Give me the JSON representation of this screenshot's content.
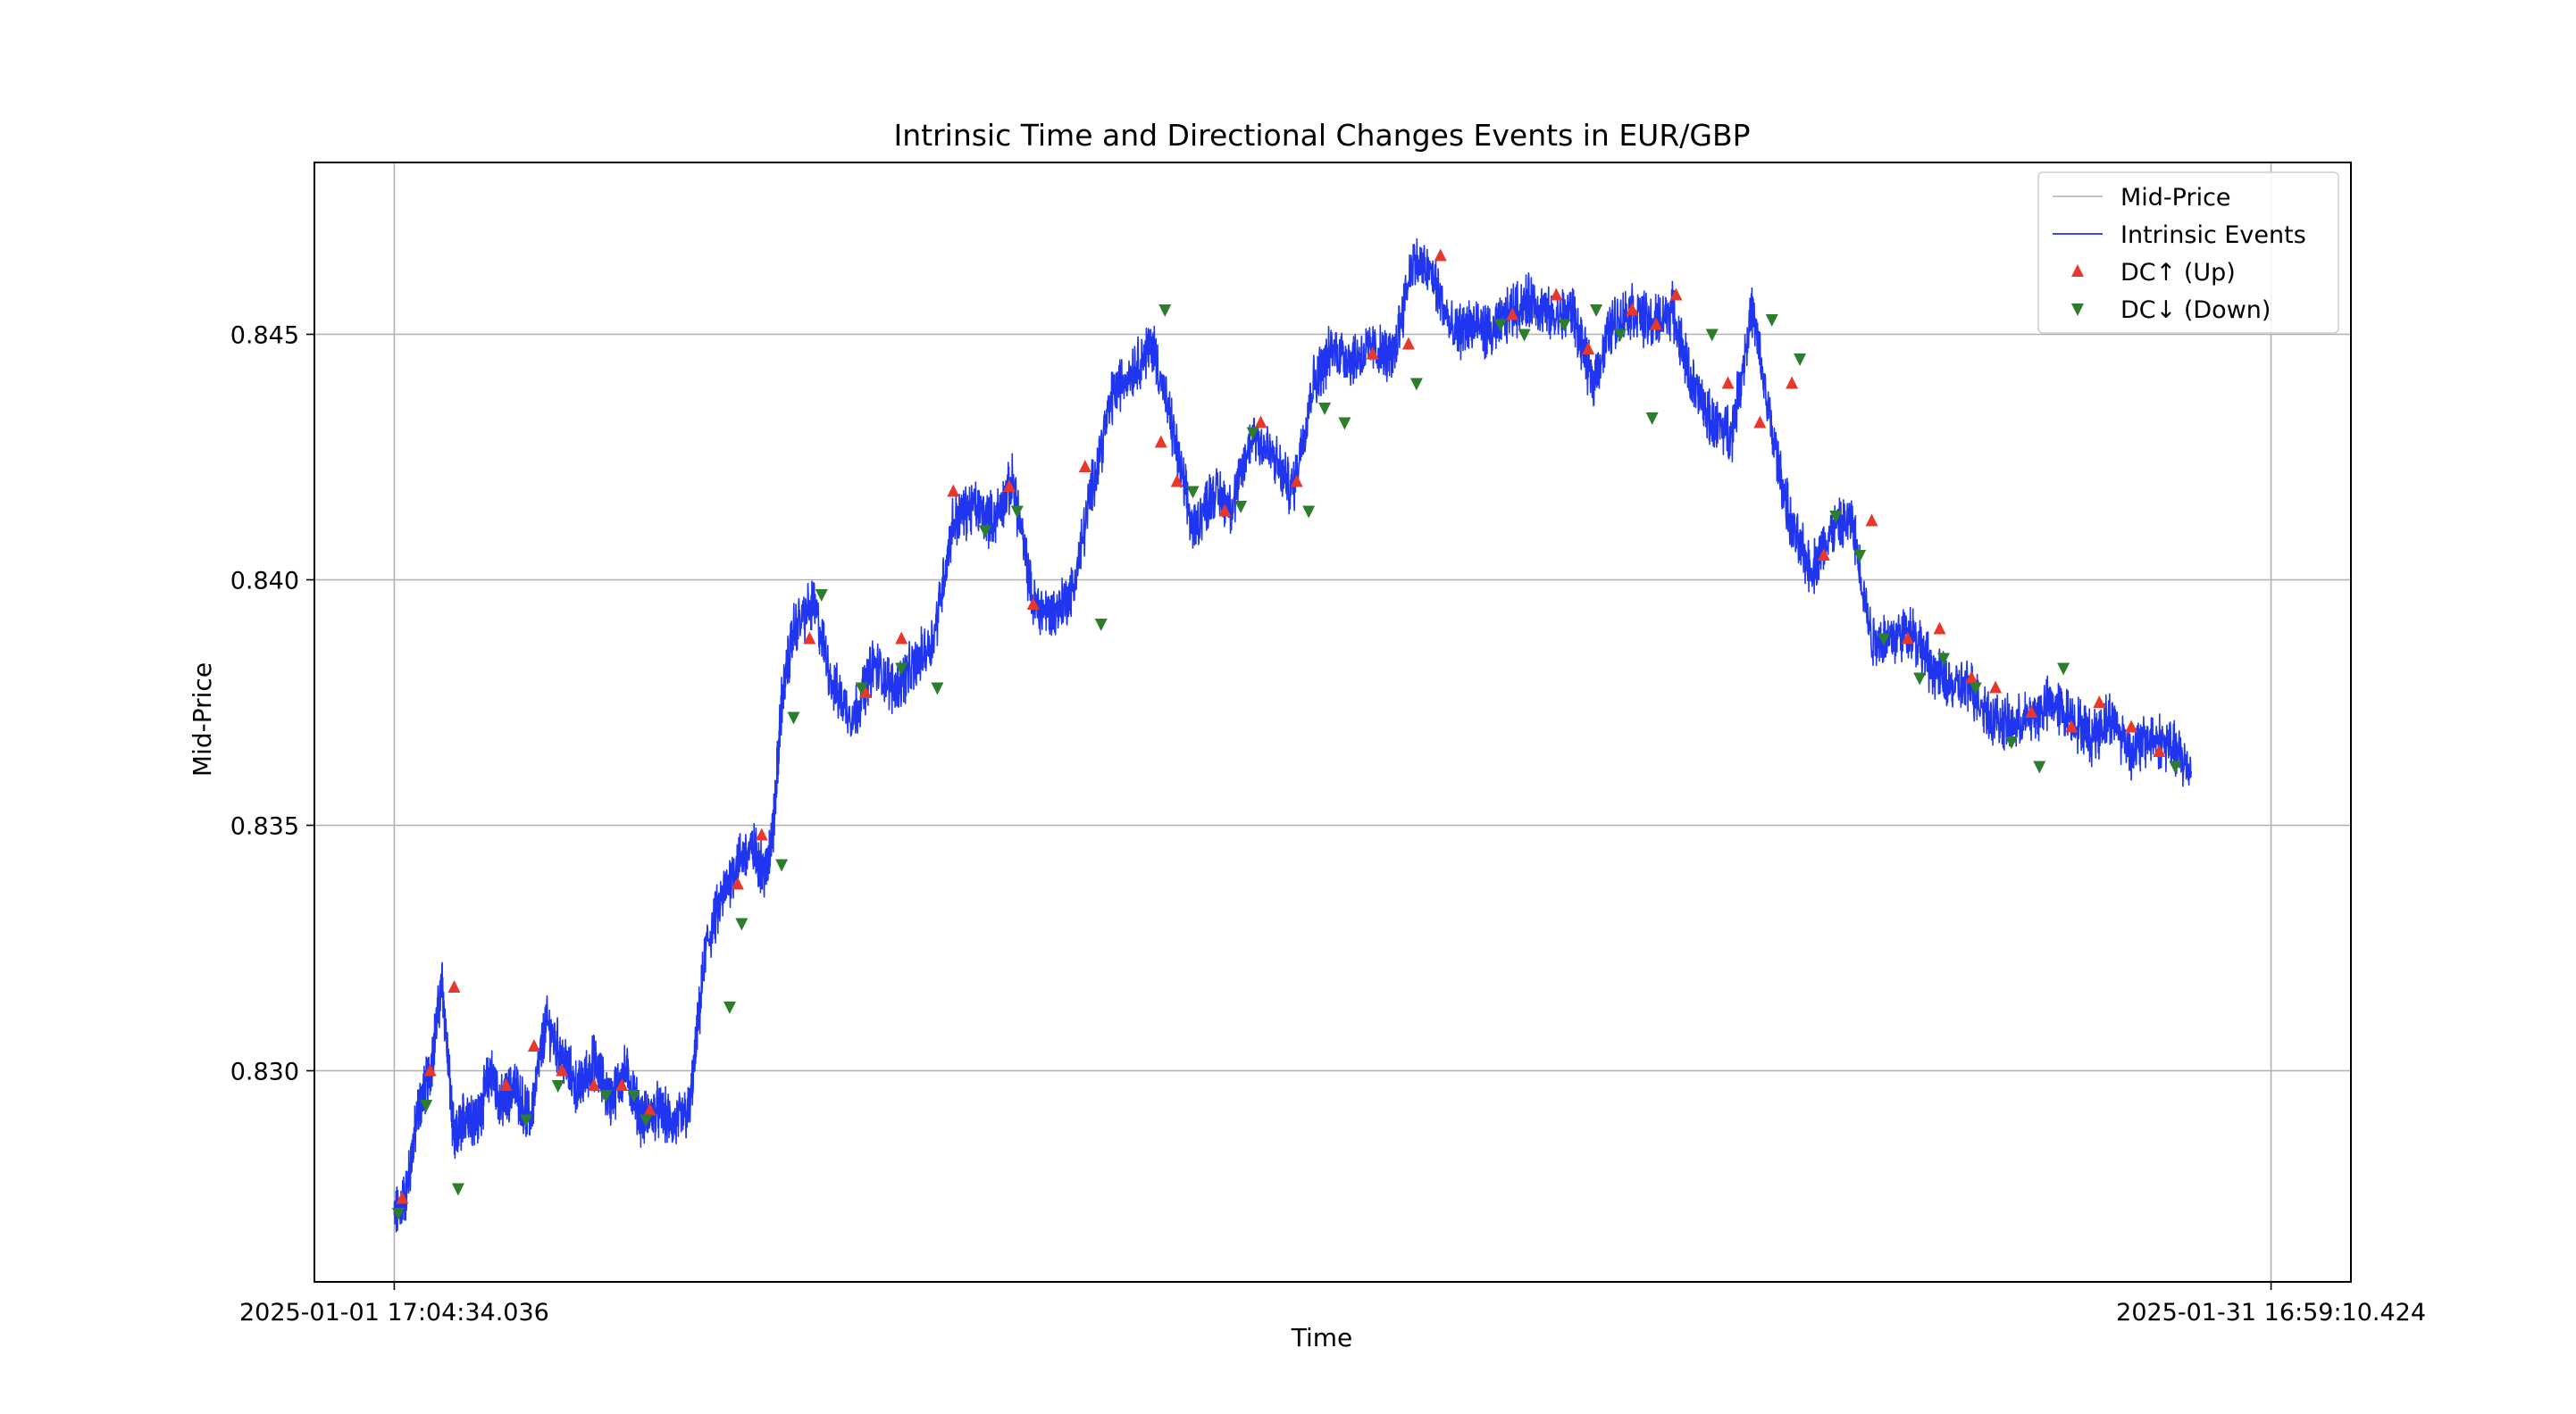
{
  "chart_data": {
    "type": "line",
    "title": "Intrinsic Time and Directional Changes Events in EUR/GBP",
    "xlabel": "Time",
    "ylabel": "Mid-Price",
    "x_ticks": [
      "2025-01-01 17:04:34.036",
      "2025-01-31 16:59:10.424"
    ],
    "x_range": [
      -0.2,
      4.9
    ],
    "x_unit": "days since 2025-01-01 17:04:34.036",
    "y_ticks": [
      "0.830",
      "0.835",
      "0.840",
      "0.845"
    ],
    "y_tick_values": [
      0.83,
      0.835,
      0.84,
      0.845
    ],
    "ylim": [
      0.8257,
      0.8485
    ],
    "grid": true,
    "legend_position": "upper right",
    "legend": [
      {
        "label": "Mid-Price",
        "kind": "line",
        "color": "#b0b0b0"
      },
      {
        "label": "Intrinsic Events",
        "kind": "line",
        "color": "#1f35f0"
      },
      {
        "label": "DC↑ (Up)",
        "kind": "up-triangle",
        "color": "#e8382c"
      },
      {
        "label": "DC↓ (Down)",
        "kind": "down-triangle",
        "color": "#2c7d2c"
      }
    ],
    "series": [
      {
        "name": "Intrinsic Events",
        "color": "#1f35f0",
        "x": [
          0.0,
          0.03,
          0.06,
          0.09,
          0.12,
          0.15,
          0.18,
          0.21,
          0.24,
          0.27,
          0.3,
          0.34,
          0.38,
          0.42,
          0.46,
          0.5,
          0.54,
          0.58,
          0.62,
          0.66,
          0.7,
          0.74,
          0.78,
          0.82,
          0.86,
          0.9,
          0.93,
          0.95,
          0.97,
          1.0,
          1.05,
          1.1,
          1.15,
          1.2,
          1.25,
          1.3,
          1.35,
          1.4,
          1.45,
          1.5,
          1.55,
          1.6,
          1.65,
          1.7,
          1.75,
          1.8,
          1.85,
          1.9,
          1.95,
          2.0,
          2.05,
          2.1,
          2.15,
          2.2,
          2.25,
          2.3,
          2.35,
          2.4,
          2.45,
          2.5,
          2.55,
          2.6,
          2.65,
          2.7,
          2.75,
          2.8,
          2.85,
          2.9,
          2.95,
          3.0,
          3.05,
          3.1,
          3.15,
          3.2,
          3.25,
          3.3,
          3.35,
          3.4,
          3.45,
          3.5,
          3.55,
          3.6,
          3.65,
          3.7,
          3.75,
          3.8,
          3.85,
          3.9,
          3.95,
          4.0,
          4.05,
          4.1,
          4.15,
          4.2,
          4.25,
          4.3,
          4.35,
          4.4,
          4.45,
          4.5
        ],
        "y": [
          0.827,
          0.8275,
          0.8292,
          0.83,
          0.8318,
          0.8285,
          0.8292,
          0.829,
          0.83,
          0.8293,
          0.8297,
          0.829,
          0.831,
          0.8303,
          0.8296,
          0.8302,
          0.8294,
          0.83,
          0.829,
          0.8292,
          0.8289,
          0.8292,
          0.8325,
          0.8335,
          0.8343,
          0.8345,
          0.834,
          0.835,
          0.8375,
          0.839,
          0.8395,
          0.8378,
          0.8372,
          0.8383,
          0.8378,
          0.8382,
          0.8388,
          0.8412,
          0.8415,
          0.8412,
          0.842,
          0.8395,
          0.8393,
          0.8398,
          0.842,
          0.8438,
          0.8443,
          0.8448,
          0.843,
          0.841,
          0.8418,
          0.8415,
          0.843,
          0.8425,
          0.8418,
          0.844,
          0.8447,
          0.8445,
          0.8447,
          0.8445,
          0.8465,
          0.8462,
          0.845,
          0.8452,
          0.845,
          0.8455,
          0.8457,
          0.8453,
          0.8455,
          0.844,
          0.8452,
          0.8455,
          0.8452,
          0.8455,
          0.844,
          0.8432,
          0.843,
          0.8455,
          0.843,
          0.841,
          0.8402,
          0.841,
          0.8412,
          0.8388,
          0.8388,
          0.839,
          0.8382,
          0.8378,
          0.8378,
          0.8372,
          0.837,
          0.8372,
          0.8375,
          0.8372,
          0.8368,
          0.8372,
          0.8365,
          0.8368,
          0.8366,
          0.8361
        ]
      }
    ],
    "dc_up": {
      "x": [
        0.02,
        0.09,
        0.15,
        0.28,
        0.35,
        0.42,
        0.5,
        0.57,
        0.64,
        0.86,
        0.92,
        1.04,
        1.18,
        1.27,
        1.4,
        1.54,
        1.6,
        1.73,
        1.92,
        1.96,
        2.08,
        2.17,
        2.26,
        2.45,
        2.54,
        2.62,
        2.8,
        2.91,
        2.99,
        3.1,
        3.16,
        3.21,
        3.34,
        3.42,
        3.5,
        3.58,
        3.7,
        3.79,
        3.87,
        3.95,
        4.01,
        4.1,
        4.2,
        4.27,
        4.35,
        4.42
      ],
      "y": [
        0.8274,
        0.83,
        0.8317,
        0.8297,
        0.8305,
        0.83,
        0.8297,
        0.8297,
        0.8292,
        0.8338,
        0.8348,
        0.8388,
        0.8377,
        0.8388,
        0.8418,
        0.8419,
        0.8395,
        0.8423,
        0.8428,
        0.842,
        0.8414,
        0.8432,
        0.842,
        0.8446,
        0.8448,
        0.8466,
        0.8454,
        0.8458,
        0.8447,
        0.8455,
        0.8452,
        0.8458,
        0.844,
        0.8432,
        0.844,
        0.8405,
        0.8412,
        0.8388,
        0.839,
        0.838,
        0.8378,
        0.8373,
        0.837,
        0.8375,
        0.837,
        0.8365
      ]
    },
    "dc_down": {
      "x": [
        0.01,
        0.08,
        0.16,
        0.33,
        0.41,
        0.53,
        0.6,
        0.63,
        0.84,
        0.87,
        0.97,
        1.0,
        1.07,
        1.17,
        1.27,
        1.36,
        1.48,
        1.56,
        1.77,
        1.93,
        2.0,
        2.12,
        2.15,
        2.29,
        2.33,
        2.38,
        2.56,
        2.77,
        2.83,
        2.93,
        3.01,
        3.07,
        3.15,
        3.3,
        3.45,
        3.52,
        3.61,
        3.67,
        3.73,
        3.82,
        3.88,
        3.96,
        4.05,
        4.12,
        4.18,
        4.46
      ],
      "y": [
        0.8271,
        0.8293,
        0.8276,
        0.829,
        0.8297,
        0.8295,
        0.8295,
        0.829,
        0.8313,
        0.833,
        0.8342,
        0.8372,
        0.8397,
        0.8378,
        0.8382,
        0.8378,
        0.841,
        0.8414,
        0.8391,
        0.8455,
        0.8418,
        0.8415,
        0.843,
        0.8414,
        0.8435,
        0.8432,
        0.844,
        0.8452,
        0.845,
        0.8452,
        0.8455,
        0.845,
        0.8433,
        0.845,
        0.8453,
        0.8445,
        0.8413,
        0.8405,
        0.8388,
        0.838,
        0.8384,
        0.8378,
        0.8367,
        0.8362,
        0.8382,
        0.8362
      ]
    }
  }
}
